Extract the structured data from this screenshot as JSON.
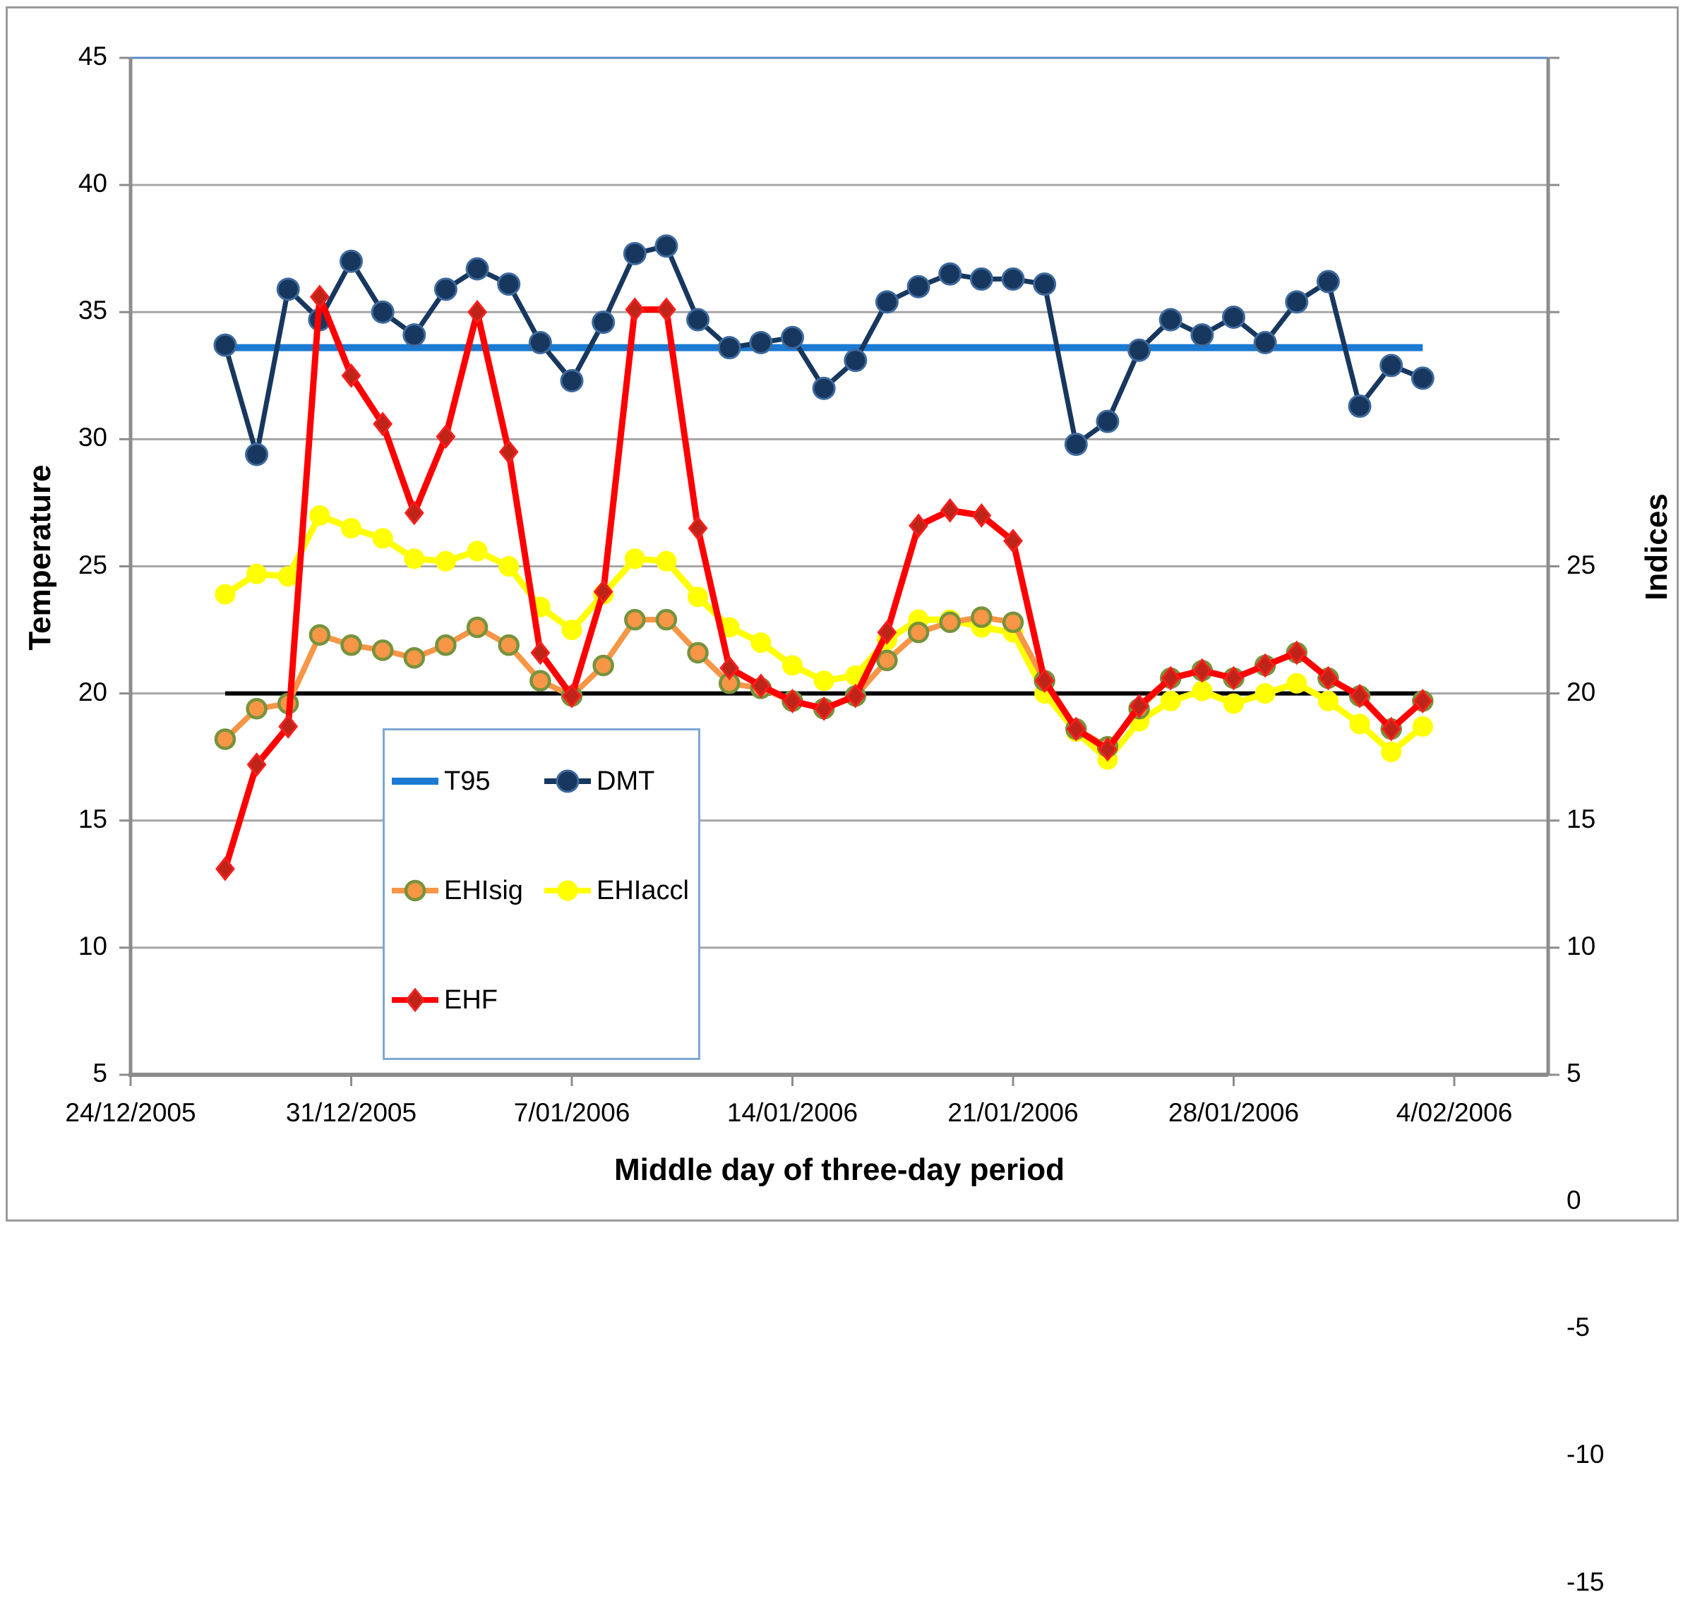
{
  "figure": {
    "background": "#FFFFFF",
    "border_color": "#9B9B9B"
  },
  "chart_data": {
    "type": "line",
    "title": "",
    "xlabel": "Middle day of three-day period",
    "x_axis": {
      "tick_labels": [
        "24/12/2005",
        "31/12/2005",
        "7/01/2006",
        "14/01/2006",
        "21/01/2006",
        "28/01/2006",
        "4/02/2006"
      ]
    },
    "y_axis_left": {
      "label": "Temperature",
      "min": 5,
      "max": 45,
      "tick_step": 5,
      "ticks": [
        45,
        40,
        35,
        30,
        25,
        20,
        15,
        10,
        5
      ]
    },
    "y_axis_right": {
      "label": "Indices",
      "min": -15,
      "max": 25,
      "tick_step": 5,
      "ticks": [
        25,
        20,
        15,
        10,
        5,
        0,
        -5,
        -10,
        -15
      ]
    },
    "grid": true,
    "grid_color": "#A6A6A6",
    "grid_color_top": "#5A8AC6",
    "axis_color": "#8C8C8C",
    "dates": [
      "27/12/2005",
      "28/12/2005",
      "29/12/2005",
      "30/12/2005",
      "31/12/2005",
      "1/01/2006",
      "2/01/2006",
      "3/01/2006",
      "4/01/2006",
      "5/01/2006",
      "6/01/2006",
      "7/01/2006",
      "8/01/2006",
      "9/01/2006",
      "10/01/2006",
      "11/01/2006",
      "12/01/2006",
      "13/01/2006",
      "14/01/2006",
      "15/01/2006",
      "16/01/2006",
      "17/01/2006",
      "18/01/2006",
      "19/01/2006",
      "20/01/2006",
      "21/01/2006",
      "22/01/2006",
      "23/01/2006",
      "24/01/2006",
      "25/01/2006",
      "26/01/2006",
      "27/01/2006",
      "28/01/2006",
      "29/01/2006",
      "30/01/2006",
      "31/01/2006",
      "1/02/2006",
      "2/02/2006",
      "3/02/2006"
    ],
    "zero_line": {
      "axis": "right",
      "value": 0,
      "color": "#000000"
    },
    "series": [
      {
        "name": "T95",
        "axis": "left",
        "type": "constant",
        "value": 33.6,
        "color": "#1B7AD2",
        "line_width": 10,
        "marker": "none"
      },
      {
        "name": "DMT",
        "axis": "left",
        "type": "line",
        "color": "#17375E",
        "line_width": 7,
        "marker": "circle",
        "marker_fill": "#17375E",
        "marker_edge": "#3E6A9E",
        "values": [
          33.7,
          29.4,
          35.9,
          34.7,
          37.0,
          35.0,
          34.1,
          35.9,
          36.7,
          36.1,
          33.8,
          32.3,
          34.6,
          37.3,
          37.6,
          34.7,
          33.6,
          33.8,
          34.0,
          32.0,
          33.1,
          35.4,
          36.0,
          36.5,
          36.3,
          36.3,
          36.1,
          29.8,
          30.7,
          33.5,
          34.7,
          34.1,
          34.8,
          33.8,
          35.4,
          36.2,
          31.3,
          32.9,
          32.4
        ]
      },
      {
        "name": "EHIsig",
        "axis": "right",
        "type": "line",
        "color": "#F79646",
        "line_width": 8,
        "marker": "circle",
        "marker_fill": "#F79646",
        "marker_edge": "#76933C",
        "values": [
          -1.8,
          -0.6,
          -0.4,
          2.3,
          1.9,
          1.7,
          1.4,
          1.9,
          2.6,
          1.9,
          0.5,
          -0.1,
          1.1,
          2.9,
          2.9,
          1.6,
          0.4,
          0.2,
          -0.3,
          -0.6,
          -0.1,
          1.3,
          2.4,
          2.8,
          3.0,
          2.8,
          0.5,
          -1.4,
          -2.1,
          -0.6,
          0.6,
          0.9,
          0.6,
          1.1,
          1.6,
          0.6,
          -0.1,
          -1.4,
          -0.3
        ]
      },
      {
        "name": "EHIaccl",
        "axis": "right",
        "type": "line",
        "color": "#FFFF00",
        "line_width": 9,
        "marker": "circle",
        "marker_fill": "#FFFF00",
        "marker_edge": "#FFFF00",
        "values": [
          3.9,
          4.7,
          4.6,
          7.0,
          6.5,
          6.1,
          5.3,
          5.2,
          5.6,
          5.0,
          3.4,
          2.5,
          3.9,
          5.3,
          5.2,
          3.8,
          2.6,
          2.0,
          1.1,
          0.5,
          0.7,
          2.1,
          2.9,
          2.9,
          2.6,
          2.4,
          0.0,
          -1.5,
          -2.6,
          -1.1,
          -0.3,
          0.1,
          -0.4,
          0.0,
          0.4,
          -0.3,
          -1.2,
          -2.3,
          -1.3
        ]
      },
      {
        "name": "EHF",
        "axis": "right",
        "type": "line",
        "color": "#FF0000",
        "line_width": 9,
        "marker": "diamond",
        "marker_fill": "#BE2418",
        "marker_edge": "#FB1D1D",
        "values": [
          -6.9,
          -2.8,
          -1.3,
          15.6,
          12.5,
          10.6,
          7.1,
          10.1,
          15.0,
          9.5,
          1.6,
          -0.1,
          4.0,
          15.1,
          15.1,
          6.5,
          1.0,
          0.3,
          -0.3,
          -0.6,
          -0.1,
          2.4,
          6.6,
          7.2,
          7.0,
          6.0,
          0.5,
          -1.4,
          -2.2,
          -0.5,
          0.6,
          0.9,
          0.6,
          1.1,
          1.6,
          0.6,
          -0.1,
          -1.4,
          -0.3
        ]
      }
    ],
    "legend": {
      "position": "inside-bottom-left",
      "border_color": "#7FA7D1",
      "items": [
        "T95",
        "DMT",
        "EHIsig",
        "EHIaccl",
        "EHF"
      ]
    }
  }
}
